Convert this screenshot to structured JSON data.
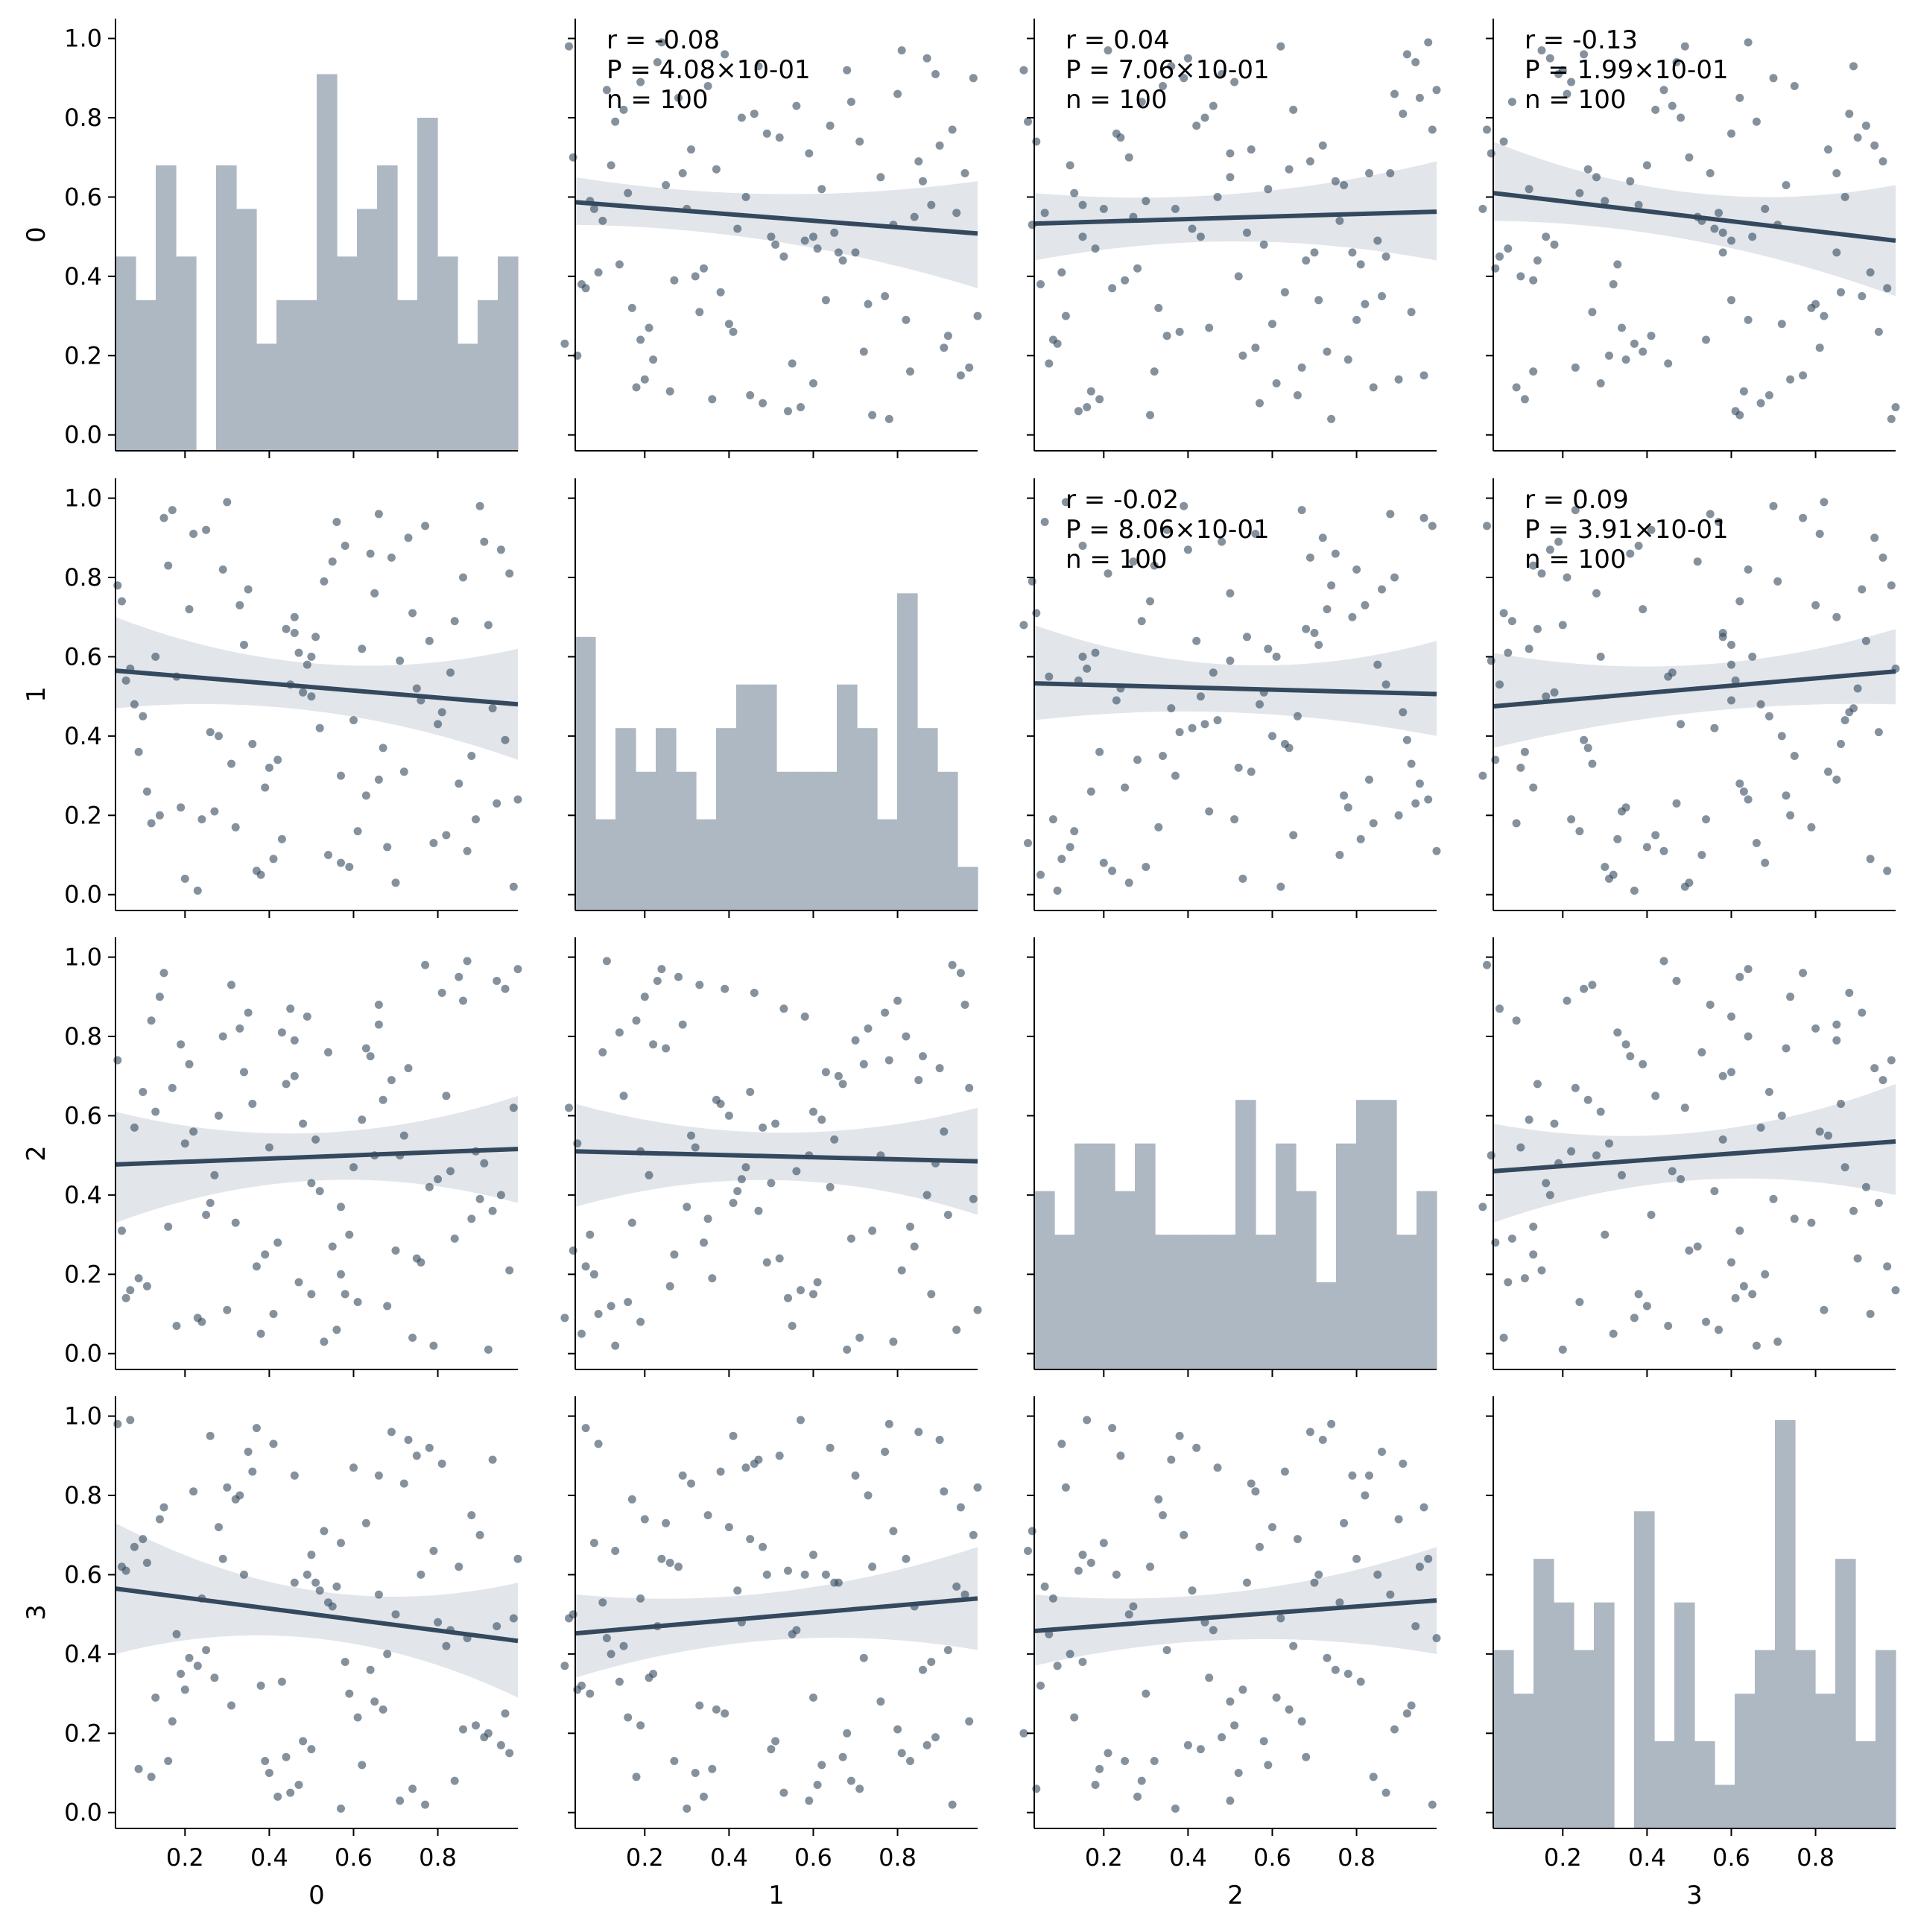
{
  "chart_data": {
    "type": "scatter",
    "kind": "pair-grid",
    "variables": [
      "0",
      "1",
      "2",
      "3"
    ],
    "n_bins": 20,
    "tick_values": [
      0.2,
      0.4,
      0.6,
      0.8
    ],
    "tick_labels": [
      "0.2",
      "0.4",
      "0.6",
      "0.8"
    ],
    "y_tick_values": [
      0.0,
      0.2,
      0.4,
      0.6,
      0.8,
      1.0
    ],
    "y_tick_labels": [
      "0.0",
      "0.2",
      "0.4",
      "0.6",
      "0.8",
      "1.0"
    ],
    "axis_range": [
      0.0,
      1.0
    ],
    "colors": {
      "points": "#34495e",
      "bars": "#aeb8c2",
      "band": "#e2e5ea",
      "line": "#34495e"
    },
    "histograms": {
      "0": [
        0.45,
        0.34,
        0.68,
        0.45,
        0.0,
        0.68,
        0.57,
        0.23,
        0.34,
        0.34,
        0.91,
        0.45,
        0.57,
        0.68,
        0.34,
        0.8,
        0.45,
        0.23,
        0.34,
        0.45
      ],
      "1": [
        0.65,
        0.19,
        0.42,
        0.31,
        0.42,
        0.31,
        0.19,
        0.42,
        0.53,
        0.53,
        0.31,
        0.31,
        0.31,
        0.53,
        0.42,
        0.19,
        0.76,
        0.42,
        0.31,
        0.07
      ],
      "2": [
        0.41,
        0.3,
        0.53,
        0.53,
        0.41,
        0.53,
        0.3,
        0.3,
        0.3,
        0.3,
        0.64,
        0.3,
        0.53,
        0.41,
        0.18,
        0.53,
        0.64,
        0.64,
        0.3,
        0.41
      ],
      "3": [
        0.41,
        0.3,
        0.64,
        0.53,
        0.41,
        0.53,
        0.0,
        0.76,
        0.18,
        0.53,
        0.18,
        0.07,
        0.3,
        0.41,
        0.99,
        0.41,
        0.3,
        0.64,
        0.18,
        0.41
      ]
    },
    "regressions": [
      {
        "x": "1",
        "y": "0",
        "left": 0.587,
        "right": 0.508,
        "band_left": [
          0.53,
          0.65
        ],
        "band_right": [
          0.37,
          0.64
        ],
        "r": "r = -0.08",
        "p": "P = 4.08×10-01",
        "n": "n = 100"
      },
      {
        "x": "2",
        "y": "0",
        "left": 0.533,
        "right": 0.563,
        "band_left": [
          0.44,
          0.61
        ],
        "band_right": [
          0.44,
          0.69
        ],
        "r": "r = 0.04",
        "p": "P = 7.06×10-01",
        "n": "n = 100"
      },
      {
        "x": "3",
        "y": "0",
        "left": 0.61,
        "right": 0.49,
        "band_left": [
          0.54,
          0.74
        ],
        "band_right": [
          0.35,
          0.63
        ],
        "r": "r = -0.13",
        "p": "P = 1.99×10-01",
        "n": "n = 100"
      },
      {
        "x": "0",
        "y": "1",
        "left": 0.565,
        "right": 0.48,
        "band_left": [
          0.47,
          0.7
        ],
        "band_right": [
          0.34,
          0.62
        ]
      },
      {
        "x": "2",
        "y": "1",
        "left": 0.533,
        "right": 0.506,
        "band_left": [
          0.44,
          0.68
        ],
        "band_right": [
          0.4,
          0.64
        ],
        "r": "r = -0.02",
        "p": "P = 8.06×10-01",
        "n": "n = 100"
      },
      {
        "x": "3",
        "y": "1",
        "left": 0.475,
        "right": 0.563,
        "band_left": [
          0.37,
          0.61
        ],
        "band_right": [
          0.48,
          0.67
        ],
        "r": "r = 0.09",
        "p": "P = 3.91×10-01",
        "n": "n = 100"
      },
      {
        "x": "0",
        "y": "2",
        "left": 0.477,
        "right": 0.516,
        "band_left": [
          0.33,
          0.61
        ],
        "band_right": [
          0.38,
          0.65
        ]
      },
      {
        "x": "1",
        "y": "2",
        "left": 0.51,
        "right": 0.485,
        "band_left": [
          0.37,
          0.63
        ],
        "band_right": [
          0.35,
          0.62
        ]
      },
      {
        "x": "3",
        "y": "2",
        "left": 0.46,
        "right": 0.535,
        "band_left": [
          0.33,
          0.58
        ],
        "band_right": [
          0.4,
          0.68
        ]
      },
      {
        "x": "0",
        "y": "3",
        "left": 0.565,
        "right": 0.433,
        "band_left": [
          0.4,
          0.73
        ],
        "band_right": [
          0.29,
          0.58
        ]
      },
      {
        "x": "1",
        "y": "3",
        "left": 0.452,
        "right": 0.54,
        "band_left": [
          0.34,
          0.55
        ],
        "band_right": [
          0.41,
          0.67
        ]
      },
      {
        "x": "2",
        "y": "3",
        "left": 0.458,
        "right": 0.535,
        "band_left": [
          0.37,
          0.55
        ],
        "band_right": [
          0.4,
          0.67
        ]
      }
    ],
    "annotation_cells": [
      {
        "x": "1",
        "y": "0"
      },
      {
        "x": "2",
        "y": "0"
      },
      {
        "x": "3",
        "y": "0"
      },
      {
        "x": "2",
        "y": "1"
      },
      {
        "x": "3",
        "y": "1"
      },
      {
        "x": "3",
        "y": "2"
      }
    ],
    "samples": {
      "0": [
        0.05,
        0.12,
        0.18,
        0.22,
        0.31,
        0.37,
        0.44,
        0.52,
        0.58,
        0.63,
        0.71,
        0.79,
        0.86,
        0.93,
        0.98,
        0.09,
        0.15,
        0.27,
        0.34,
        0.41,
        0.48,
        0.55,
        0.66,
        0.74,
        0.82,
        0.9,
        0.96,
        0.07,
        0.2,
        0.29,
        0.39,
        0.46,
        0.6,
        0.68,
        0.77,
        0.88,
        0.13,
        0.24,
        0.35,
        0.5,
        0.57,
        0.64,
        0.72,
        0.84,
        0.94,
        0.06,
        0.17,
        0.26,
        0.43,
        0.53,
        0.62,
        0.7,
        0.81,
        0.91,
        0.11,
        0.21,
        0.32,
        0.45,
        0.56,
        0.67,
        0.78,
        0.87,
        0.97,
        0.08,
        0.19,
        0.3,
        0.4,
        0.49,
        0.59,
        0.69,
        0.8,
        0.92,
        0.14,
        0.25,
        0.36,
        0.47,
        0.54,
        0.65,
        0.75,
        0.85,
        0.95,
        0.1,
        0.23,
        0.33,
        0.42,
        0.51,
        0.61,
        0.73,
        0.83,
        0.99,
        0.16,
        0.28,
        0.38,
        0.46,
        0.57,
        0.66,
        0.76,
        0.89,
        0.04,
        0.5
      ],
      "1": [
        0.74,
        0.18,
        0.55,
        0.91,
        0.33,
        0.06,
        0.67,
        0.42,
        0.88,
        0.25,
        0.59,
        0.13,
        0.8,
        0.47,
        0.02,
        0.36,
        0.95,
        0.21,
        0.63,
        0.09,
        0.51,
        0.84,
        0.29,
        0.71,
        0.15,
        0.98,
        0.39,
        0.57,
        0.04,
        0.82,
        0.27,
        0.66,
        0.44,
        0.12,
        0.93,
        0.35,
        0.6,
        0.19,
        0.77,
        0.5,
        0.08,
        0.86,
        0.31,
        0.69,
        0.23,
        0.54,
        0.97,
        0.41,
        0.14,
        0.79,
        0.62,
        0.03,
        0.46,
        0.89,
        0.26,
        0.72,
        0.17,
        0.53,
        0.94,
        0.37,
        0.64,
        0.11,
        0.81,
        0.48,
        0.22,
        0.99,
        0.32,
        0.58,
        0.07,
        0.85,
        0.43,
        0.68,
        0.2,
        0.92,
        0.38,
        0.61,
        0.1,
        0.76,
        0.52,
        0.28,
        0.87,
        0.45,
        0.01,
        0.73,
        0.34,
        0.65,
        0.16,
        0.9,
        0.56,
        0.24,
        0.83,
        0.4,
        0.05,
        0.7,
        0.3,
        0.96,
        0.49,
        0.19,
        0.78,
        0.6
      ],
      "2": [
        0.31,
        0.84,
        0.07,
        0.56,
        0.93,
        0.22,
        0.68,
        0.41,
        0.15,
        0.77,
        0.5,
        0.02,
        0.89,
        0.36,
        0.62,
        0.19,
        0.96,
        0.45,
        0.71,
        0.1,
        0.58,
        0.27,
        0.83,
        0.04,
        0.65,
        0.39,
        0.92,
        0.16,
        0.53,
        0.8,
        0.25,
        0.7,
        0.47,
        0.12,
        0.98,
        0.34,
        0.61,
        0.08,
        0.86,
        0.43,
        0.2,
        0.75,
        0.55,
        0.29,
        0.94,
        0.14,
        0.67,
        0.38,
        0.81,
        0.03,
        0.59,
        0.26,
        0.91,
        0.48,
        0.17,
        0.73,
        0.33,
        0.87,
        0.06,
        0.64,
        0.42,
        0.99,
        0.21,
        0.57,
        0.78,
        0.11,
        0.52,
        0.85,
        0.3,
        0.69,
        0.44,
        0.01,
        0.9,
        0.35,
        0.63,
        0.18,
        0.76,
        0.5,
        0.24,
        0.95,
        0.4,
        0.66,
        0.09,
        0.82,
        0.28,
        0.54,
        0.13,
        0.72,
        0.46,
        0.97,
        0.32,
        0.6,
        0.05,
        0.79,
        0.37,
        0.88,
        0.23,
        0.51,
        0.74,
        0.15
      ],
      "3": [
        0.62,
        0.09,
        0.45,
        0.81,
        0.27,
        0.97,
        0.14,
        0.56,
        0.38,
        0.73,
        0.03,
        0.66,
        0.21,
        0.89,
        0.49,
        0.11,
        0.77,
        0.34,
        0.6,
        0.93,
        0.18,
        0.52,
        0.85,
        0.06,
        0.42,
        0.7,
        0.25,
        0.99,
        0.31,
        0.64,
        0.13,
        0.58,
        0.87,
        0.4,
        0.02,
        0.75,
        0.29,
        0.54,
        0.91,
        0.16,
        0.68,
        0.36,
        0.83,
        0.08,
        0.47,
        0.61,
        0.23,
        0.95,
        0.33,
        0.71,
        0.12,
        0.5,
        0.88,
        0.19,
        0.63,
        0.39,
        0.79,
        0.05,
        0.57,
        0.26,
        0.92,
        0.44,
        0.15,
        0.67,
        0.35,
        0.82,
        0.1,
        0.6,
        0.3,
        0.96,
        0.48,
        0.2,
        0.74,
        0.41,
        0.86,
        0.07,
        0.53,
        0.28,
        0.9,
        0.62,
        0.17,
        0.69,
        0.37,
        0.8,
        0.04,
        0.58,
        0.24,
        0.94,
        0.46,
        0.64,
        0.13,
        0.72,
        0.32,
        0.85,
        0.01,
        0.55,
        0.6,
        0.22,
        0.98,
        0.65
      ]
    }
  }
}
